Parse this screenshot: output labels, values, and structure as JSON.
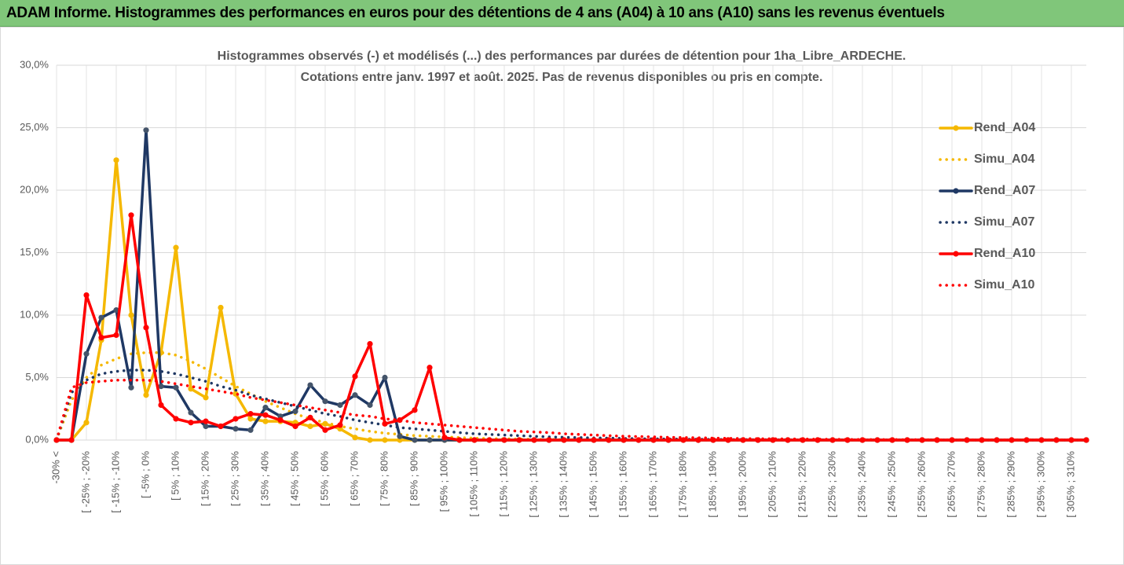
{
  "banner": "ADAM Informe. Histogrammes des performances en euros pour des détentions de 4 ans (A04) à 10 ans (A10) sans les revenus éventuels",
  "chart_data": {
    "type": "line",
    "title": [
      "Histogrammes observés (-) et modélisés (...) des performances par durées de détention pour 1ha_Libre_ARDECHE.",
      "Cotations entre janv. 1997 et août. 2025. Pas de revenus disponibles ou pris en compte."
    ],
    "categories": [
      "-30% <",
      null,
      "[ -25% ; -20%",
      null,
      "[ -15% ; -10%",
      null,
      "[ -5% ; 0%",
      null,
      "[ 5% ; 10%",
      null,
      "[ 15% ; 20%",
      null,
      "[ 25% ; 30%",
      null,
      "[ 35% ; 40%",
      null,
      "[ 45% ; 50%",
      null,
      "[ 55% ; 60%",
      null,
      "[ 65% ; 70%",
      null,
      "[ 75% ; 80%",
      null,
      "[ 85% ; 90%",
      null,
      "[ 95% ; 100%",
      null,
      "[ 105% ; 110%",
      null,
      "[ 115% ; 120%",
      null,
      "[ 125% ; 130%",
      null,
      "[ 135% ; 140%",
      null,
      "[ 145% ; 150%",
      null,
      "[ 155% ; 160%",
      null,
      "[ 165% ; 170%",
      null,
      "[ 175% ; 180%",
      null,
      "[ 185% ; 190%",
      null,
      "[ 195% ; 200%",
      null,
      "[ 205% ; 210%",
      null,
      "[ 215% ; 220%",
      null,
      "[ 225% ; 230%",
      null,
      "[ 235% ; 240%",
      null,
      "[ 245% ; 250%",
      null,
      "[ 255% ; 260%",
      null,
      "[ 265% ; 270%",
      null,
      "[ 275% ; 280%",
      null,
      "[ 285% ; 290%",
      null,
      "[ 295% ; 300%",
      null,
      "[ 305% ; 310%",
      null
    ],
    "series": [
      {
        "name": "Rend_A04",
        "color": "#f5b800",
        "style": "solid",
        "marker": true,
        "values": [
          0,
          0,
          1.4,
          8.0,
          22.4,
          10.0,
          3.6,
          7.0,
          15.4,
          4.1,
          3.4,
          10.6,
          3.7,
          1.7,
          1.5,
          1.5,
          1.4,
          1.1,
          1.3,
          0.9,
          0.2,
          0,
          0,
          0,
          0,
          0,
          0,
          0,
          0,
          0,
          0,
          0,
          0,
          0,
          0,
          0,
          0,
          0,
          0,
          0,
          0,
          0,
          0,
          0,
          0,
          0,
          0,
          0,
          0,
          0,
          0,
          0,
          0,
          0,
          0,
          0,
          0,
          0,
          0,
          0,
          0,
          0,
          0,
          0,
          0,
          0,
          0,
          0,
          0,
          0
        ]
      },
      {
        "name": "Simu_A04",
        "color": "#f5b800",
        "style": "dotted",
        "marker": false,
        "values": [
          0,
          3.2,
          5.0,
          6.0,
          6.5,
          6.9,
          7.0,
          7.0,
          6.8,
          6.3,
          5.7,
          5.0,
          4.3,
          3.7,
          3.1,
          2.6,
          2.1,
          1.7,
          1.4,
          1.1,
          0.9,
          0.7,
          0.55,
          0.45,
          0.35,
          0.3,
          0.25,
          0.2,
          0.15,
          0.12,
          0.1,
          0.08,
          0.06,
          0.05,
          0.04,
          0.03,
          0.02,
          0.02,
          0.01,
          0.01,
          0,
          0,
          0,
          0,
          0,
          0,
          0,
          0,
          0,
          0,
          0,
          0,
          0,
          0,
          0,
          0,
          0,
          0,
          0,
          0,
          0,
          0,
          0,
          0,
          0,
          0,
          0,
          0,
          0,
          0
        ]
      },
      {
        "name": "Rend_A07",
        "color": "#1f3864",
        "style": "solid",
        "marker": true,
        "values": [
          0,
          0,
          6.9,
          9.8,
          10.4,
          4.2,
          24.8,
          4.3,
          4.2,
          2.2,
          1.1,
          1.1,
          0.9,
          0.8,
          2.6,
          1.9,
          2.3,
          4.4,
          3.1,
          2.8,
          3.6,
          2.8,
          5.0,
          0.3,
          0,
          0,
          0,
          0,
          0,
          0,
          0,
          0,
          0,
          0,
          0,
          0,
          0,
          0,
          0,
          0,
          0,
          0,
          0,
          0,
          0,
          0,
          0,
          0,
          0,
          0,
          0,
          0,
          0,
          0,
          0,
          0,
          0,
          0,
          0,
          0,
          0,
          0,
          0,
          0,
          0,
          0,
          0,
          0,
          0,
          0
        ]
      },
      {
        "name": "Simu_A07",
        "color": "#1f3864",
        "style": "dotted",
        "marker": false,
        "values": [
          0,
          3.8,
          4.8,
          5.3,
          5.5,
          5.6,
          5.6,
          5.5,
          5.3,
          5.0,
          4.7,
          4.3,
          4.0,
          3.6,
          3.3,
          3.0,
          2.7,
          2.4,
          2.1,
          1.9,
          1.6,
          1.4,
          1.2,
          1.0,
          0.9,
          0.8,
          0.7,
          0.6,
          0.5,
          0.45,
          0.4,
          0.35,
          0.3,
          0.25,
          0.22,
          0.2,
          0.17,
          0.15,
          0.13,
          0.11,
          0.1,
          0.08,
          0.07,
          0.06,
          0.05,
          0.04,
          0.04,
          0.03,
          0.03,
          0.02,
          0.02,
          0.02,
          0.01,
          0.01,
          0.01,
          0.01,
          0.01,
          0.01,
          0.01,
          0.01,
          0,
          0,
          0,
          0,
          0,
          0,
          0,
          0,
          0,
          0
        ]
      },
      {
        "name": "Rend_A10",
        "color": "#ff0000",
        "style": "solid",
        "marker": true,
        "values": [
          0,
          0,
          11.6,
          8.2,
          8.4,
          18.0,
          9.0,
          2.8,
          1.7,
          1.4,
          1.5,
          1.1,
          1.7,
          2.1,
          2.0,
          1.6,
          1.1,
          1.8,
          0.8,
          1.2,
          5.1,
          7.7,
          1.3,
          1.6,
          2.4,
          5.8,
          0.2,
          0,
          0,
          0,
          0,
          0,
          0,
          0,
          0,
          0,
          0,
          0,
          0,
          0,
          0,
          0,
          0,
          0,
          0,
          0,
          0,
          0,
          0,
          0,
          0,
          0,
          0,
          0,
          0,
          0,
          0,
          0,
          0,
          0,
          0,
          0,
          0,
          0,
          0,
          0,
          0,
          0,
          0,
          0
        ]
      },
      {
        "name": "Simu_A10",
        "color": "#ff0000",
        "style": "dotted",
        "marker": false,
        "values": [
          0,
          4.2,
          4.6,
          4.7,
          4.8,
          4.8,
          4.8,
          4.7,
          4.5,
          4.3,
          4.1,
          3.9,
          3.7,
          3.4,
          3.2,
          3.0,
          2.8,
          2.6,
          2.4,
          2.2,
          2.0,
          1.9,
          1.7,
          1.6,
          1.4,
          1.3,
          1.2,
          1.1,
          1.0,
          0.9,
          0.8,
          0.7,
          0.65,
          0.6,
          0.5,
          0.45,
          0.4,
          0.35,
          0.3,
          0.28,
          0.25,
          0.22,
          0.2,
          0.18,
          0.16,
          0.14,
          0.12,
          0.11,
          0.1,
          0.09,
          0.08,
          0.07,
          0.06,
          0.05,
          0.05,
          0.04,
          0.04,
          0.03,
          0.03,
          0.02,
          0.02,
          0.02,
          0.02,
          0.01,
          0.01,
          0.01,
          0.01,
          0.01,
          0.01,
          0.01
        ]
      }
    ],
    "ylim": [
      0,
      30
    ],
    "yticks": [
      {
        "value": 0,
        "label": "0,0%"
      },
      {
        "value": 5,
        "label": "5,0%"
      },
      {
        "value": 10,
        "label": "10,0%"
      },
      {
        "value": 15,
        "label": "15,0%"
      },
      {
        "value": 20,
        "label": "20,0%"
      },
      {
        "value": 25,
        "label": "25,0%"
      },
      {
        "value": 30,
        "label": "30,0%"
      }
    ],
    "grid": true,
    "legend": "right"
  }
}
